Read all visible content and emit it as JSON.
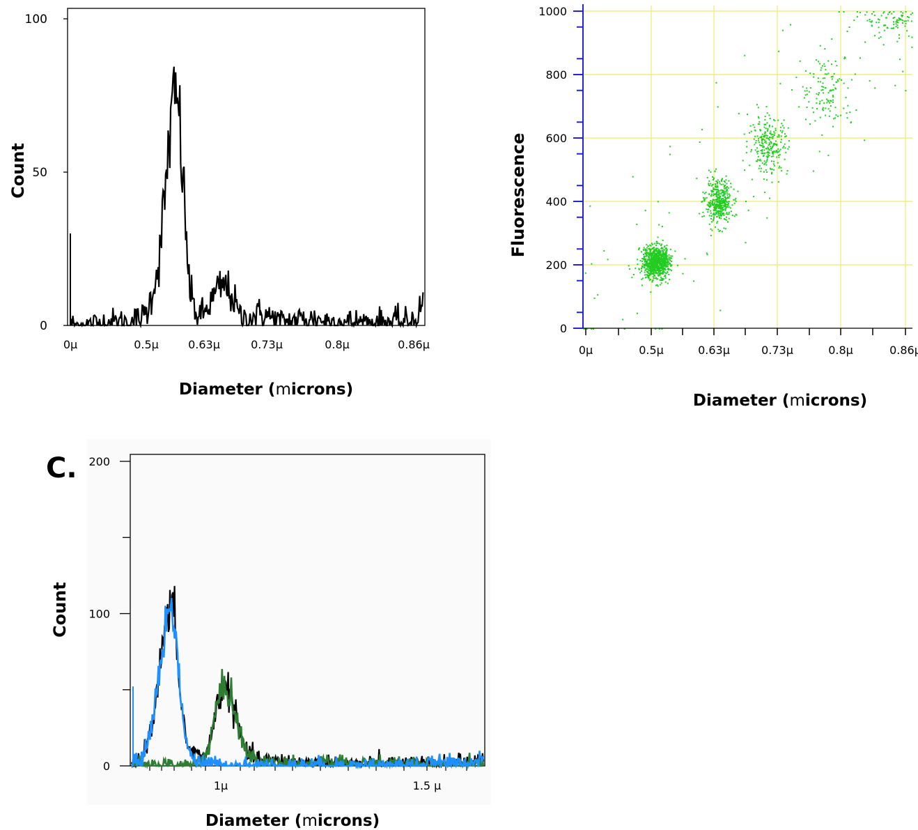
{
  "panel_labels": {
    "c": "C."
  },
  "colors": {
    "axis": "#000000",
    "histogram_line": "#000000",
    "scatter_points": "#22cc22",
    "scatter_grid": "#eeee88",
    "scatter_axis_ticks": "#2222dd",
    "series_blue": "#1e90ff",
    "series_green": "#2e7d32",
    "panel_c_background": "#fafafa"
  },
  "chart_data": [
    {
      "type": "line",
      "xlabel_prefix": "Diameter (",
      "xlabel_mu": "m",
      "xlabel_suffix": "icrons)",
      "ylabel": "Count",
      "ylim": [
        0,
        100
      ],
      "y_ticks": [
        0,
        50,
        100
      ],
      "x_ticks": [
        "0μ",
        "0.5μ",
        "0.63μ",
        "0.73μ",
        "0.8μ",
        "0.86μ"
      ],
      "grid": false,
      "series": [
        {
          "x": [
            0.0,
            0.05,
            0.1,
            0.15,
            0.2,
            0.22,
            0.25,
            0.27,
            0.28,
            0.29,
            0.3,
            0.31,
            0.32,
            0.33,
            0.34,
            0.36,
            0.38,
            0.4,
            0.42,
            0.44,
            0.46,
            0.48,
            0.5,
            0.52,
            0.54,
            0.56,
            0.58,
            0.6,
            0.65,
            0.7,
            0.75,
            0.8,
            0.85,
            0.9,
            0.95,
            0.98,
            1.0
          ],
          "y": [
            0,
            0,
            1,
            1,
            2,
            5,
            20,
            45,
            62,
            70,
            75,
            65,
            45,
            25,
            10,
            3,
            4,
            8,
            12,
            13,
            9,
            3,
            2,
            3,
            4,
            3,
            2,
            1,
            2,
            2,
            1,
            1,
            1,
            1,
            1,
            2,
            8
          ]
        }
      ],
      "annotations": [
        {
          "x": 0.0,
          "y": 30,
          "note": "spike at left edge"
        }
      ]
    },
    {
      "type": "scatter",
      "xlabel_prefix": "Diameter (",
      "xlabel_mu": "m",
      "xlabel_suffix": "icrons)",
      "ylabel": "Fluorescence",
      "ylim": [
        0,
        1000
      ],
      "y_ticks": [
        0,
        200,
        400,
        600,
        800,
        1000
      ],
      "x_ticks": [
        "0μ",
        "0.5μ",
        "0.63μ",
        "0.73μ",
        "0.8μ",
        "0.86μ"
      ],
      "grid": true,
      "clusters": [
        {
          "x": 0.22,
          "y": 210,
          "spread_x": 0.02,
          "spread_y": 25,
          "density": "high"
        },
        {
          "x": 0.41,
          "y": 400,
          "spread_x": 0.02,
          "spread_y": 35,
          "density": "medium"
        },
        {
          "x": 0.56,
          "y": 580,
          "spread_x": 0.03,
          "spread_y": 45,
          "density": "low"
        },
        {
          "x": 0.74,
          "y": 750,
          "spread_x": 0.04,
          "spread_y": 60,
          "density": "sparse"
        },
        {
          "x": 0.95,
          "y": 980,
          "spread_x": 0.05,
          "spread_y": 30,
          "density": "sparse"
        }
      ]
    },
    {
      "type": "line",
      "xlabel_prefix": "Diameter (",
      "xlabel_mu": "m",
      "xlabel_suffix": "icrons)",
      "ylabel": "Count",
      "ylim": [
        0,
        200
      ],
      "y_ticks": [
        0,
        100,
        200
      ],
      "x_ticks": [
        "1μ",
        "1.5 μ"
      ],
      "grid": false,
      "series": [
        {
          "color": "black",
          "x": [
            0.0,
            0.03,
            0.06,
            0.08,
            0.1,
            0.11,
            0.12,
            0.13,
            0.14,
            0.16,
            0.18,
            0.2,
            0.22,
            0.24,
            0.26,
            0.28,
            0.3,
            0.32,
            0.34,
            0.36,
            0.4,
            0.5,
            0.6,
            0.7,
            0.8,
            0.9,
            1.0
          ],
          "y": [
            0,
            4,
            30,
            65,
            95,
            105,
            100,
            75,
            40,
            12,
            8,
            6,
            12,
            38,
            52,
            48,
            28,
            12,
            6,
            4,
            3,
            2,
            1,
            1,
            1,
            1,
            4
          ]
        },
        {
          "color": "blue",
          "x": [
            0.0,
            0.03,
            0.06,
            0.08,
            0.1,
            0.11,
            0.12,
            0.13,
            0.14,
            0.16,
            0.18,
            0.2,
            0.25,
            0.3,
            0.4,
            0.6,
            0.8,
            1.0
          ],
          "y": [
            0,
            4,
            30,
            65,
            95,
            105,
            100,
            75,
            40,
            12,
            3,
            1,
            1,
            0,
            0,
            0,
            0,
            3
          ]
        },
        {
          "color": "green",
          "x": [
            0.0,
            0.15,
            0.18,
            0.2,
            0.22,
            0.24,
            0.26,
            0.28,
            0.3,
            0.32,
            0.34,
            0.36,
            0.4,
            0.5,
            0.7,
            1.0
          ],
          "y": [
            0,
            0,
            1,
            4,
            12,
            38,
            52,
            48,
            28,
            12,
            5,
            3,
            2,
            1,
            1,
            1
          ]
        }
      ]
    }
  ]
}
